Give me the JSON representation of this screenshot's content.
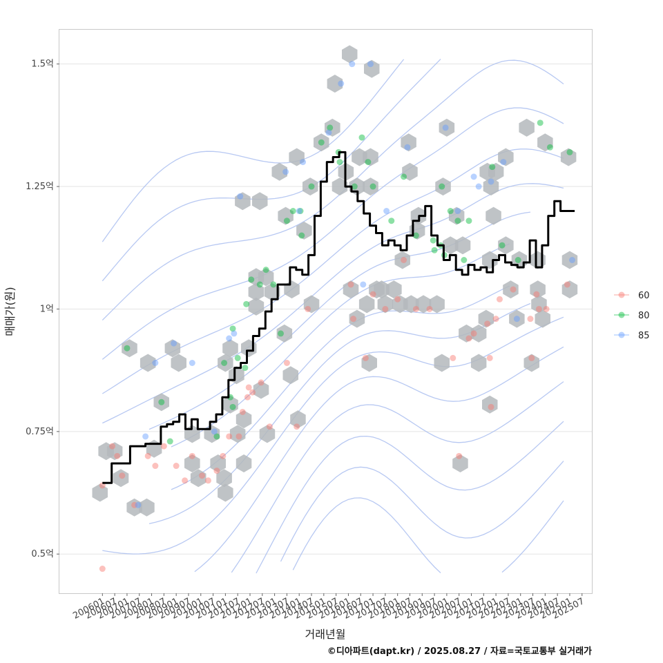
{
  "chart_data": {
    "type": "scatter",
    "xlabel": "거래년월",
    "ylabel": "매매가(원)",
    "caption": "©디아파트(dapt.kr) / 2025.08.27 / 자료=국토교통부 실거래가",
    "x_ticks": [
      "200601",
      "200607",
      "200701",
      "200707",
      "200801",
      "200807",
      "200901",
      "200907",
      "201001",
      "201007",
      "201101",
      "201107",
      "201201",
      "201207",
      "201301",
      "201307",
      "201401",
      "201407",
      "201501",
      "201507",
      "201601",
      "201607",
      "201701",
      "201707",
      "201801",
      "201807",
      "201901",
      "201907",
      "202001",
      "202007",
      "202101",
      "202107",
      "202201",
      "202207",
      "202301",
      "202307",
      "202401",
      "202407",
      "202501",
      "202507"
    ],
    "y_ticks": [
      {
        "value": 0.5,
        "label": "0.5억"
      },
      {
        "value": 0.75,
        "label": "0.75억"
      },
      {
        "value": 1.0,
        "label": "1억"
      },
      {
        "value": 1.25,
        "label": "1.25억"
      },
      {
        "value": 1.5,
        "label": "1.5억"
      }
    ],
    "ylim": [
      0.42,
      1.57
    ],
    "xlim": [
      -3.5,
      39.8
    ],
    "grid": "horizontal",
    "legend_position": "right",
    "colors": {
      "60": "#f8766d",
      "80": "#00ba38",
      "85": "#619cff",
      "line": "#000000",
      "hex": "#b4b8bc",
      "contour": "#aabef0"
    },
    "legend": [
      "60",
      "80",
      "85"
    ],
    "points": {
      "60": [
        [
          0,
          0.64
        ],
        [
          0,
          0.47
        ],
        [
          0.8,
          0.72
        ],
        [
          1.2,
          0.7
        ],
        [
          1.6,
          0.66
        ],
        [
          2.6,
          0.6
        ],
        [
          3.7,
          0.7
        ],
        [
          4.3,
          0.68
        ],
        [
          5,
          0.72
        ],
        [
          6,
          0.68
        ],
        [
          6.7,
          0.65
        ],
        [
          7.3,
          0.7
        ],
        [
          8.1,
          0.66
        ],
        [
          8.6,
          0.65
        ],
        [
          9.3,
          0.67
        ],
        [
          9.8,
          0.7
        ],
        [
          10.3,
          0.74
        ],
        [
          11.1,
          0.74
        ],
        [
          11.4,
          0.79
        ],
        [
          11.8,
          0.82
        ],
        [
          11.9,
          0.84
        ],
        [
          12.2,
          0.83
        ],
        [
          12.9,
          0.85
        ],
        [
          13.6,
          0.76
        ],
        [
          15,
          0.89
        ],
        [
          15.8,
          0.76
        ],
        [
          16.7,
          1.0
        ],
        [
          20.2,
          1.05
        ],
        [
          20.4,
          0.98
        ],
        [
          21.4,
          0.9
        ],
        [
          22,
          1.03
        ],
        [
          23,
          1.0
        ],
        [
          24,
          1.02
        ],
        [
          24.5,
          1.1
        ],
        [
          25.5,
          1.0
        ],
        [
          26.6,
          1.0
        ],
        [
          28.5,
          0.9
        ],
        [
          29,
          0.7
        ],
        [
          29.8,
          0.94
        ],
        [
          30.2,
          0.95
        ],
        [
          31.3,
          0.97
        ],
        [
          31.5,
          0.9
        ],
        [
          32,
          0.98
        ],
        [
          32.3,
          1.02
        ],
        [
          33.4,
          1.04
        ],
        [
          34.8,
          0.98
        ],
        [
          34.9,
          0.9
        ],
        [
          35.3,
          1.03
        ],
        [
          35.5,
          1.0
        ],
        [
          36.1,
          1.0
        ],
        [
          37.8,
          1.05
        ],
        [
          31.6,
          0.8
        ]
      ],
      "80": [
        [
          2,
          0.92
        ],
        [
          4.8,
          0.81
        ],
        [
          5.5,
          0.73
        ],
        [
          9.9,
          0.89
        ],
        [
          9.3,
          0.74
        ],
        [
          10.6,
          0.96
        ],
        [
          10.4,
          0.82
        ],
        [
          10.6,
          0.8
        ],
        [
          11,
          0.9
        ],
        [
          11.6,
          0.88
        ],
        [
          11.7,
          1.01
        ],
        [
          12.1,
          1.06
        ],
        [
          12.8,
          1.05
        ],
        [
          13.3,
          1.08
        ],
        [
          13.9,
          1.05
        ],
        [
          14.5,
          0.95
        ],
        [
          15,
          1.18
        ],
        [
          15.5,
          1.2
        ],
        [
          16.1,
          1.2
        ],
        [
          16.2,
          1.15
        ],
        [
          17,
          1.25
        ],
        [
          17.8,
          1.34
        ],
        [
          18.5,
          1.37
        ],
        [
          19.2,
          1.32
        ],
        [
          19.3,
          1.3
        ],
        [
          20.5,
          1.25
        ],
        [
          21.1,
          1.35
        ],
        [
          21.6,
          1.3
        ],
        [
          22,
          1.25
        ],
        [
          23.5,
          1.18
        ],
        [
          24.5,
          1.27
        ],
        [
          25.5,
          1.15
        ],
        [
          26.9,
          1.14
        ],
        [
          27,
          1.12
        ],
        [
          27.5,
          1.13
        ],
        [
          27.8,
          1.11
        ],
        [
          27.6,
          1.25
        ],
        [
          28.3,
          1.2
        ],
        [
          28.9,
          1.18
        ],
        [
          29.4,
          1.1
        ],
        [
          29.8,
          1.18
        ],
        [
          31.7,
          1.29
        ],
        [
          32.5,
          1.13
        ],
        [
          33.8,
          1.1
        ],
        [
          35.6,
          1.38
        ],
        [
          36.4,
          1.33
        ],
        [
          38,
          1.32
        ]
      ],
      "85": [
        [
          4.3,
          0.89
        ],
        [
          5.8,
          0.93
        ],
        [
          7.3,
          0.89
        ],
        [
          3.5,
          0.74
        ],
        [
          2.9,
          0.6
        ],
        [
          9.1,
          0.75
        ],
        [
          10.3,
          0.94
        ],
        [
          10.7,
          0.95
        ],
        [
          11.2,
          1.23
        ],
        [
          14.9,
          1.28
        ],
        [
          16,
          1.2
        ],
        [
          16.3,
          1.3
        ],
        [
          18.4,
          1.36
        ],
        [
          19.4,
          1.46
        ],
        [
          20.3,
          1.5
        ],
        [
          21.2,
          1.05
        ],
        [
          21.8,
          1.5
        ],
        [
          23.1,
          1.2
        ],
        [
          24.8,
          1.33
        ],
        [
          27.9,
          1.37
        ],
        [
          28.9,
          1.2
        ],
        [
          30.2,
          1.27
        ],
        [
          30.6,
          1.25
        ],
        [
          31.6,
          1.26
        ],
        [
          32.6,
          1.3
        ],
        [
          33.7,
          0.98
        ],
        [
          38.2,
          1.1
        ]
      ]
    },
    "hexbins": [
      [
        -0.2,
        0.625
      ],
      [
        0.3,
        0.71
      ],
      [
        1,
        0.71
      ],
      [
        1.5,
        0.655
      ],
      [
        2.2,
        0.92
      ],
      [
        2.6,
        0.595
      ],
      [
        3.6,
        0.595
      ],
      [
        3.7,
        0.89
      ],
      [
        4.2,
        0.715
      ],
      [
        4.8,
        0.81
      ],
      [
        5.7,
        0.92
      ],
      [
        6.2,
        0.89
      ],
      [
        7.3,
        0.745
      ],
      [
        7.3,
        0.685
      ],
      [
        7.8,
        0.655
      ],
      [
        8.9,
        0.745
      ],
      [
        9.4,
        0.685
      ],
      [
        9.9,
        0.655
      ],
      [
        10,
        0.625
      ],
      [
        10,
        0.89
      ],
      [
        10.4,
        0.92
      ],
      [
        10.4,
        0.805
      ],
      [
        10.9,
        0.865
      ],
      [
        11,
        0.745
      ],
      [
        11.4,
        1.22
      ],
      [
        11.5,
        0.685
      ],
      [
        11.5,
        0.775
      ],
      [
        11.9,
        0.92
      ],
      [
        12.5,
        1.035
      ],
      [
        12.5,
        1.065
      ],
      [
        12.5,
        1.005
      ],
      [
        12.8,
        1.22
      ],
      [
        12.9,
        0.835
      ],
      [
        13.3,
        1.065
      ],
      [
        13.4,
        0.745
      ],
      [
        13.8,
        1.035
      ],
      [
        14.4,
        1.28
      ],
      [
        14.8,
        0.95
      ],
      [
        14.9,
        1.19
      ],
      [
        15.3,
        0.865
      ],
      [
        15.4,
        1.04
      ],
      [
        15.8,
        1.31
      ],
      [
        15.9,
        0.775
      ],
      [
        16.4,
        1.16
      ],
      [
        16.9,
        1.25
      ],
      [
        17,
        1.01
      ],
      [
        17.8,
        1.34
      ],
      [
        18.7,
        1.37
      ],
      [
        18.9,
        1.46
      ],
      [
        19.3,
        1.25
      ],
      [
        20.1,
        1.52
      ],
      [
        19.8,
        1.28
      ],
      [
        20.2,
        1.04
      ],
      [
        20.7,
        1.25
      ],
      [
        20.7,
        0.98
      ],
      [
        20.9,
        1.31
      ],
      [
        21.5,
        1.01
      ],
      [
        21.7,
        0.89
      ],
      [
        21.8,
        1.25
      ],
      [
        21.8,
        1.31
      ],
      [
        21.9,
        1.49
      ],
      [
        22.3,
        1.04
      ],
      [
        22.7,
        1.04
      ],
      [
        23,
        1.01
      ],
      [
        23.7,
        1.04
      ],
      [
        24.4,
        1.1
      ],
      [
        24.2,
        1.01
      ],
      [
        24.9,
        1.34
      ],
      [
        25,
        1.28
      ],
      [
        25.1,
        1.01
      ],
      [
        25.6,
        1.16
      ],
      [
        25.7,
        1.19
      ],
      [
        26.1,
        1.01
      ],
      [
        27.2,
        1.01
      ],
      [
        27.6,
        0.89
      ],
      [
        27.7,
        1.25
      ],
      [
        28,
        1.37
      ],
      [
        28.3,
        1.13
      ],
      [
        29.1,
        0.685
      ],
      [
        28.8,
        1.19
      ],
      [
        29.3,
        1.13
      ],
      [
        29.6,
        0.95
      ],
      [
        30.6,
        0.95
      ],
      [
        30.6,
        0.89
      ],
      [
        31.2,
        0.98
      ],
      [
        31.3,
        1.28
      ],
      [
        31.5,
        1.1
      ],
      [
        31.5,
        0.805
      ],
      [
        31.6,
        1.25
      ],
      [
        31.8,
        1.19
      ],
      [
        32,
        1.28
      ],
      [
        32.8,
        1.13
      ],
      [
        32.8,
        1.31
      ],
      [
        33.2,
        1.04
      ],
      [
        33.7,
        0.98
      ],
      [
        33.9,
        1.1
      ],
      [
        34.5,
        1.37
      ],
      [
        34.9,
        0.89
      ],
      [
        35.4,
        1.1
      ],
      [
        35.4,
        1.04
      ],
      [
        35.5,
        1.01
      ],
      [
        35.8,
        0.98
      ],
      [
        36,
        1.34
      ],
      [
        37.9,
        1.31
      ],
      [
        38,
        1.04
      ],
      [
        38,
        1.1
      ]
    ],
    "series": [
      {
        "name": "",
        "x": [
          0,
          0.5,
          1,
          2,
          2.5,
          3,
          4,
          4.5,
          5,
          5.5,
          6,
          6.5,
          7,
          7.5,
          8,
          8.5,
          9,
          9.5,
          10,
          10.5,
          11,
          11.5,
          12,
          12.5,
          13,
          13.5,
          14,
          14.5,
          15,
          15.5,
          16,
          16.5,
          17,
          17.5,
          18,
          18.5,
          19,
          19.5,
          20,
          20.5,
          21,
          21.5,
          22,
          22.5,
          23,
          23.5,
          24,
          24.5,
          25,
          25.5,
          26,
          26.5,
          27,
          27.5,
          28,
          28.5,
          29,
          29.5,
          30,
          30.5,
          31,
          31.5,
          32,
          32.5,
          33,
          33.5,
          34,
          34.5,
          35,
          35.5,
          36,
          36.5,
          37,
          37.5,
          38,
          38.4
        ],
        "y": [
          0.645,
          0.645,
          0.685,
          0.685,
          0.72,
          0.72,
          0.725,
          0.725,
          0.76,
          0.765,
          0.77,
          0.785,
          0.755,
          0.775,
          0.755,
          0.755,
          0.77,
          0.785,
          0.82,
          0.855,
          0.88,
          0.89,
          0.915,
          0.945,
          0.96,
          0.995,
          1.02,
          1.05,
          1.05,
          1.085,
          1.08,
          1.07,
          1.11,
          1.19,
          1.26,
          1.3,
          1.31,
          1.32,
          1.25,
          1.24,
          1.22,
          1.195,
          1.17,
          1.155,
          1.13,
          1.14,
          1.13,
          1.12,
          1.15,
          1.18,
          1.19,
          1.21,
          1.15,
          1.13,
          1.1,
          1.11,
          1.08,
          1.07,
          1.09,
          1.08,
          1.085,
          1.075,
          1.1,
          1.11,
          1.095,
          1.09,
          1.085,
          1.095,
          1.14,
          1.085,
          1.13,
          1.19,
          1.22,
          1.2,
          1.2,
          1.2
        ]
      }
    ]
  }
}
